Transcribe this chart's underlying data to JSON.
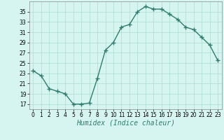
{
  "x": [
    0,
    1,
    2,
    3,
    4,
    5,
    6,
    7,
    8,
    9,
    10,
    11,
    12,
    13,
    14,
    15,
    16,
    17,
    18,
    19,
    20,
    21,
    22,
    23
  ],
  "y": [
    23.5,
    22.5,
    20.0,
    19.5,
    19.0,
    17.0,
    17.0,
    17.2,
    22.0,
    27.5,
    29.0,
    32.0,
    32.5,
    35.0,
    36.0,
    35.5,
    35.5,
    34.5,
    33.5,
    32.0,
    31.5,
    30.0,
    28.5,
    25.5
  ],
  "line_color": "#2e7d6e",
  "marker": "+",
  "marker_size": 4,
  "bg_color": "#d6f5f0",
  "grid_color": "#aaddcc",
  "xlabel": "Humidex (Indice chaleur)",
  "xlabel_fontsize": 7,
  "yticks": [
    17,
    19,
    21,
    23,
    25,
    27,
    29,
    31,
    33,
    35
  ],
  "xticks": [
    0,
    1,
    2,
    3,
    4,
    5,
    6,
    7,
    8,
    9,
    10,
    11,
    12,
    13,
    14,
    15,
    16,
    17,
    18,
    19,
    20,
    21,
    22,
    23
  ],
  "ylim": [
    16,
    37
  ],
  "xlim": [
    -0.5,
    23.5
  ],
  "tick_fontsize": 5.5,
  "line_width": 1.0
}
